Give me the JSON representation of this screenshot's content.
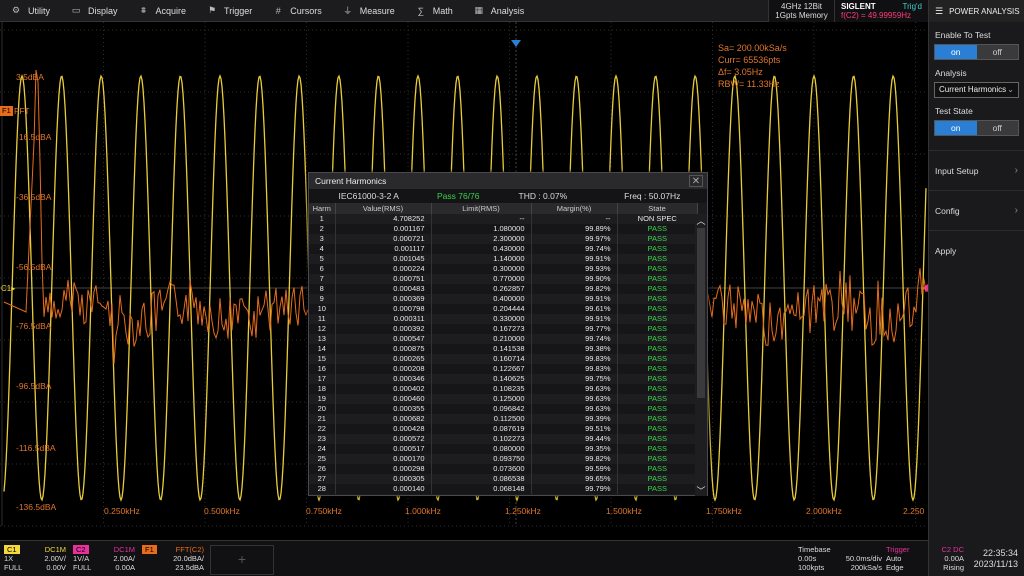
{
  "menu": {
    "items": [
      {
        "label": "Utility",
        "icon": "gear-icon",
        "glyph": "⚙"
      },
      {
        "label": "Display",
        "icon": "display-icon",
        "glyph": "▭"
      },
      {
        "label": "Acquire",
        "icon": "acquire-icon",
        "glyph": "⩩"
      },
      {
        "label": "Trigger",
        "icon": "trigger-icon",
        "glyph": "⚑"
      },
      {
        "label": "Cursors",
        "icon": "cursors-icon",
        "glyph": "#"
      },
      {
        "label": "Measure",
        "icon": "measure-icon",
        "glyph": "⏚"
      },
      {
        "label": "Math",
        "icon": "math-icon",
        "glyph": "∑"
      },
      {
        "label": "Analysis",
        "icon": "analysis-icon",
        "glyph": "▦"
      }
    ]
  },
  "acquisition": {
    "line1": "4GHz 12Bit",
    "line2": "1Gpts Memory"
  },
  "brand": {
    "logo": "SIGLENT",
    "trig_status": "Trig'd",
    "freq": "f(C2) = 49.99959Hz"
  },
  "panel": {
    "title": "POWER ANALYSIS",
    "enable_label": "Enable To Test",
    "enable_on": "on",
    "enable_off": "off",
    "analysis_label": "Analysis",
    "analysis_value": "Current Harmonics",
    "state_label": "Test State",
    "state_on": "on",
    "state_off": "off",
    "input_setup": "Input Setup",
    "config": "Config",
    "apply": "Apply"
  },
  "scope": {
    "fft_info": [
      "Sa= 200.00kSa/s",
      "Curr= 65536pts",
      "Δf= 3.05Hz",
      "RBW= 11.33Hz"
    ],
    "y_labels": [
      "3.5dBA",
      "-16.5dBA",
      "-36.5dBA",
      "-56.5dBA",
      "-76.5dBA",
      "-96.5dBA",
      "-116.5dBA",
      "-136.5dBA"
    ],
    "x_labels": [
      "0.250kHz",
      "0.500kHz",
      "0.750kHz",
      "1.000kHz",
      "1.250kHz",
      "1.500kHz",
      "1.750kHz",
      "2.000kHz",
      "2.250"
    ],
    "marker_f1": "F1",
    "marker_fft": "FFT",
    "marker_c1": "C1▸",
    "colors": {
      "ch1": "#f4d83c",
      "fft": "#e86c1a",
      "grid": "#2e2e2e"
    }
  },
  "dialog": {
    "title": "Current Harmonics",
    "standard": "IEC61000-3-2 A",
    "pass": "Pass 76/76",
    "thd": "THD : 0.07%",
    "freq": "Freq : 50.07Hz",
    "headers": [
      "Harm",
      "Value(RMS)",
      "Limit(RMS)",
      "Margin(%)",
      "State"
    ],
    "rows": [
      [
        "1",
        "4.708252",
        "--",
        "--",
        "NON SPEC"
      ],
      [
        "2",
        "0.001167",
        "1.080000",
        "99.89%",
        "PASS"
      ],
      [
        "3",
        "0.000721",
        "2.300000",
        "99.97%",
        "PASS"
      ],
      [
        "4",
        "0.001117",
        "0.430000",
        "99.74%",
        "PASS"
      ],
      [
        "5",
        "0.001045",
        "1.140000",
        "99.91%",
        "PASS"
      ],
      [
        "6",
        "0.000224",
        "0.300000",
        "99.93%",
        "PASS"
      ],
      [
        "7",
        "0.000751",
        "0.770000",
        "99.90%",
        "PASS"
      ],
      [
        "8",
        "0.000483",
        "0.262857",
        "99.82%",
        "PASS"
      ],
      [
        "9",
        "0.000369",
        "0.400000",
        "99.91%",
        "PASS"
      ],
      [
        "10",
        "0.000798",
        "0.204444",
        "99.61%",
        "PASS"
      ],
      [
        "11",
        "0.000311",
        "0.330000",
        "99.91%",
        "PASS"
      ],
      [
        "12",
        "0.000392",
        "0.167273",
        "99.77%",
        "PASS"
      ],
      [
        "13",
        "0.000547",
        "0.210000",
        "99.74%",
        "PASS"
      ],
      [
        "14",
        "0.000875",
        "0.141538",
        "99.38%",
        "PASS"
      ],
      [
        "15",
        "0.000265",
        "0.160714",
        "99.83%",
        "PASS"
      ],
      [
        "16",
        "0.000208",
        "0.122667",
        "99.83%",
        "PASS"
      ],
      [
        "17",
        "0.000346",
        "0.140625",
        "99.75%",
        "PASS"
      ],
      [
        "18",
        "0.000402",
        "0.108235",
        "99.63%",
        "PASS"
      ],
      [
        "19",
        "0.000460",
        "0.125000",
        "99.63%",
        "PASS"
      ],
      [
        "20",
        "0.000355",
        "0.096842",
        "99.63%",
        "PASS"
      ],
      [
        "21",
        "0.000682",
        "0.112500",
        "99.39%",
        "PASS"
      ],
      [
        "22",
        "0.000428",
        "0.087619",
        "99.51%",
        "PASS"
      ],
      [
        "23",
        "0.000572",
        "0.102273",
        "99.44%",
        "PASS"
      ],
      [
        "24",
        "0.000517",
        "0.080000",
        "99.35%",
        "PASS"
      ],
      [
        "25",
        "0.000170",
        "0.093750",
        "99.82%",
        "PASS"
      ],
      [
        "26",
        "0.000298",
        "0.073600",
        "99.59%",
        "PASS"
      ],
      [
        "27",
        "0.000305",
        "0.086538",
        "99.65%",
        "PASS"
      ],
      [
        "28",
        "0.000140",
        "0.068148",
        "99.79%",
        "PASS"
      ]
    ]
  },
  "bottom": {
    "c1": {
      "tag": "C1",
      "coupling": "DC1M",
      "probe": "1X",
      "scale": "2.00V/",
      "bw": "FULL",
      "offset": "0.00V"
    },
    "c2": {
      "tag": "C2",
      "coupling": "DC1M",
      "probe": "1V/A",
      "scale": "2.00A/",
      "bw": "FULL",
      "offset": "0.00A"
    },
    "f1": {
      "tag": "F1",
      "source": "FFT(C2)",
      "scale": "20.0dBA/",
      "ref": "23.5dBA"
    },
    "timebase": {
      "title": "Timebase",
      "delay": "0.00s",
      "div": "50.0ms/div",
      "pts": "100kpts",
      "rate": "200kSa/s"
    },
    "trigger": {
      "title": "Trigger",
      "source": "C2 DC",
      "mode": "Auto",
      "level": "0.00A",
      "type": "Edge",
      "slope": "Rising"
    },
    "clock": {
      "time": "22:35:34",
      "date": "2023/11/13"
    }
  }
}
